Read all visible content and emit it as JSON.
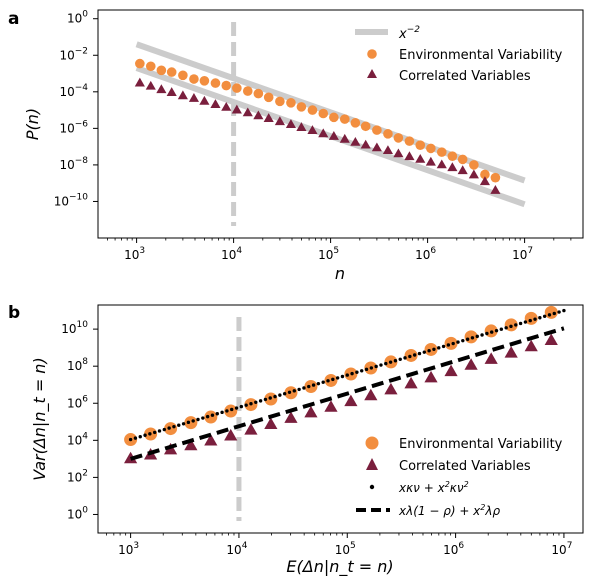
{
  "chart_data": [
    {
      "panel_label": "a",
      "type": "scatter",
      "xscale": "log",
      "yscale": "log",
      "xlabel": "n",
      "ylabel": "P(n)",
      "xlim": [
        400,
        40000000
      ],
      "ylim": [
        1e-12,
        3
      ],
      "xticks": [
        {
          "value": 1000,
          "base": "10",
          "exp": "3"
        },
        {
          "value": 10000,
          "base": "10",
          "exp": "4"
        },
        {
          "value": 100000,
          "base": "10",
          "exp": "5"
        },
        {
          "value": 1000000,
          "base": "10",
          "exp": "6"
        },
        {
          "value": 10000000,
          "base": "10",
          "exp": "7"
        }
      ],
      "yticks": [
        {
          "value": 1,
          "base": "10",
          "exp": "0"
        },
        {
          "value": 0.01,
          "base": "10",
          "exp": "−2"
        },
        {
          "value": 0.0001,
          "base": "10",
          "exp": "−4"
        },
        {
          "value": 1e-06,
          "base": "10",
          "exp": "−6"
        },
        {
          "value": 1e-08,
          "base": "10",
          "exp": "−8"
        },
        {
          "value": 1e-10,
          "base": "10",
          "exp": "−10"
        }
      ],
      "vline_x": 10000,
      "legend_position": "top-right",
      "reference_lines": [
        {
          "name_base": "x",
          "name_exp": "−2",
          "color": "#cccccc",
          "x": [
            1000,
            10000000
          ],
          "y": [
            0.04,
            1.4e-09
          ]
        },
        {
          "color": "#cccccc",
          "x": [
            1000,
            10000000
          ],
          "y": [
            0.002,
            7e-11
          ]
        }
      ],
      "series": [
        {
          "name": "Environmental Variability",
          "color": "#f28e3f",
          "marker": "circle",
          "x": [
            1080,
            1400,
            1800,
            2300,
            3000,
            3900,
            5000,
            6500,
            8400,
            10800,
            14000,
            18000,
            23000,
            30000,
            39000,
            50000,
            65000,
            84000,
            108000,
            140000,
            180000,
            230000,
            300000,
            390000,
            500000,
            650000,
            840000,
            1080000,
            1400000,
            1800000,
            2300000,
            3000000,
            3900000,
            5000000
          ],
          "y": [
            0.0035,
            0.0025,
            0.0015,
            0.0012,
            0.0008,
            0.0005,
            0.0004,
            0.0003,
            0.00022,
            0.00016,
            0.00011,
            8e-05,
            5e-05,
            3e-05,
            2.5e-05,
            1.5e-05,
            1e-05,
            6.5e-06,
            4e-06,
            3.2e-06,
            2e-06,
            1.3e-06,
            8e-07,
            5e-07,
            3e-07,
            2e-07,
            1.2e-07,
            8e-08,
            5e-08,
            3e-08,
            2e-08,
            1e-08,
            3e-09,
            2e-09
          ]
        },
        {
          "name": "Correlated Variables",
          "color": "#7a1f3d",
          "marker": "triangle",
          "x": [
            1080,
            1400,
            1800,
            2300,
            3000,
            3900,
            5000,
            6500,
            8400,
            10800,
            14000,
            18000,
            23000,
            30000,
            39000,
            50000,
            65000,
            84000,
            108000,
            140000,
            180000,
            230000,
            300000,
            390000,
            500000,
            650000,
            840000,
            1080000,
            1400000,
            1800000,
            2300000,
            3000000,
            3900000,
            5000000
          ],
          "y": [
            0.0003,
            0.0002,
            0.00013,
            9e-05,
            6e-05,
            4.3e-05,
            3e-05,
            2e-05,
            1.4e-05,
            1e-05,
            7e-06,
            4.8e-06,
            3.4e-06,
            2.3e-06,
            1.6e-06,
            1.1e-06,
            7.5e-07,
            5e-07,
            3.6e-07,
            2.5e-07,
            1.7e-07,
            1.2e-07,
            8.5e-08,
            6e-08,
            4e-08,
            2.8e-08,
            2e-08,
            1.4e-08,
            1e-08,
            7e-09,
            4.8e-09,
            2.8e-09,
            1.2e-09,
            4e-10
          ]
        }
      ]
    },
    {
      "panel_label": "b",
      "type": "scatter",
      "xscale": "log",
      "yscale": "log",
      "xlabel": "E(Δn|n_t = n)",
      "ylabel": "Var(Δn|n_t = n)",
      "xlim": [
        500,
        15000000
      ],
      "ylim": [
        0.1,
        200000000000
      ],
      "xticks": [
        {
          "value": 1000,
          "base": "10",
          "exp": "3"
        },
        {
          "value": 10000,
          "base": "10",
          "exp": "4"
        },
        {
          "value": 100000,
          "base": "10",
          "exp": "5"
        },
        {
          "value": 1000000,
          "base": "10",
          "exp": "6"
        },
        {
          "value": 10000000,
          "base": "10",
          "exp": "7"
        }
      ],
      "yticks": [
        {
          "value": 1,
          "base": "10",
          "exp": "0"
        },
        {
          "value": 100,
          "base": "10",
          "exp": "2"
        },
        {
          "value": 10000,
          "base": "10",
          "exp": "4"
        },
        {
          "value": 1000000,
          "base": "10",
          "exp": "6"
        },
        {
          "value": 100000000,
          "base": "10",
          "exp": "8"
        },
        {
          "value": 10000000000,
          "base": "10",
          "exp": "10"
        }
      ],
      "vline_x": 10000,
      "legend_position": "bottom-right",
      "series": [
        {
          "name": "Environmental Variability",
          "color": "#f28e3f",
          "marker": "circle",
          "x": [
            1000,
            1530,
            2340,
            3600,
            5500,
            8400,
            12900,
            19700,
            30200,
            46200,
            70700,
            108000,
            165000,
            253000,
            388000,
            593000,
            908000,
            1390000,
            2130000,
            3260000,
            4990000,
            7640000
          ],
          "y": [
            11000,
            22000,
            43000,
            90000,
            180000,
            380000,
            850000,
            1700000,
            3700000,
            8000000,
            17000000,
            38000000,
            80000000,
            170000000,
            380000000,
            800000000,
            1700000000,
            3800000000,
            8000000000,
            17000000000,
            38000000000,
            80000000000
          ]
        },
        {
          "name": "Correlated Variables",
          "color": "#7a1f3d",
          "marker": "triangle",
          "x": [
            1000,
            1530,
            2340,
            3600,
            5500,
            8400,
            12900,
            19700,
            30200,
            46200,
            70700,
            108000,
            165000,
            253000,
            388000,
            593000,
            908000,
            1390000,
            2130000,
            3260000,
            4990000,
            7640000
          ],
          "y": [
            1000,
            1600,
            3000,
            5000,
            9000,
            17000,
            35000,
            70000,
            150000,
            300000,
            600000,
            1200000,
            2500000,
            5200000,
            11000000,
            23000000,
            50000000,
            110000000,
            230000000,
            500000000,
            1100000000,
            2400000000
          ]
        },
        {
          "name": "xκν + x²κν²",
          "label_parts": {
            "a": "xκν",
            "b": " + x",
            "sup": "2",
            "c": "κν",
            "sup2": "2"
          },
          "color": "#000000",
          "marker": "dots-line",
          "x": [
            1000,
            10000000
          ],
          "y": [
            11000,
            100000000000
          ]
        },
        {
          "name": "xλ(1 − ρ) + x²λρ",
          "label_parts": {
            "a": "xλ(1 − ρ) + x",
            "sup": "2",
            "c": "λρ"
          },
          "color": "#000000",
          "marker": "dashed-line",
          "x": [
            1000,
            10000000
          ],
          "y": [
            1000,
            11000000000
          ]
        }
      ]
    }
  ]
}
